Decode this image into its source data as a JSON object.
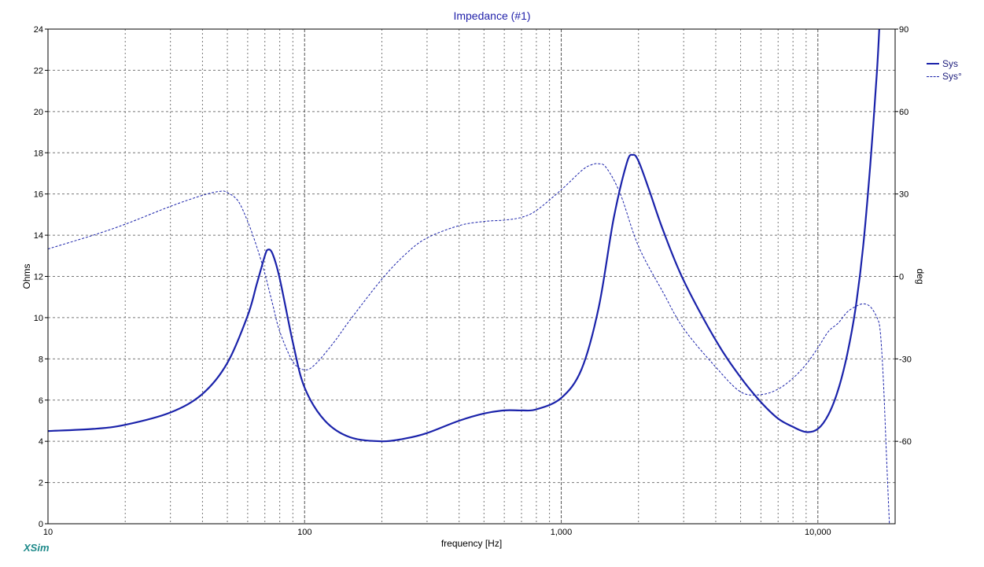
{
  "colors": {
    "curve": "#1a22aa",
    "grid": "#777777",
    "title": "#2222aa",
    "brand": "#1e8a8a"
  },
  "brand": "XSim",
  "chart_data": {
    "type": "line",
    "title": "Impedance (#1)",
    "xlabel": "frequency [Hz]",
    "ylabel": "Ohms",
    "y2label": "deg",
    "xscale": "log",
    "xlim": [
      10,
      20000
    ],
    "ylim": [
      0,
      24
    ],
    "y2lim": [
      -90,
      90
    ],
    "xticks": [
      10,
      100,
      1000,
      10000
    ],
    "xticklabels": [
      "10",
      "100",
      "1,000",
      "10,000"
    ],
    "yticks": [
      0,
      2,
      4,
      6,
      8,
      10,
      12,
      14,
      16,
      18,
      20,
      22,
      24
    ],
    "yticklabels": [
      "0",
      "2",
      "4",
      "6",
      "8",
      "10",
      "12",
      "14",
      "16",
      "18",
      "20",
      "22",
      "24"
    ],
    "y2ticks": [
      -60,
      -30,
      0,
      30,
      60,
      90
    ],
    "y2ticklabels": [
      "-60",
      "-30",
      "0",
      "30",
      "60",
      "90"
    ],
    "grid": true,
    "legend_position": "top-right",
    "series": [
      {
        "name": "Sys",
        "axis": "left",
        "style": "solid",
        "x": [
          10,
          15,
          20,
          30,
          40,
          50,
          60,
          65,
          70,
          72,
          75,
          80,
          90,
          100,
          120,
          150,
          200,
          250,
          300,
          400,
          500,
          600,
          700,
          800,
          1000,
          1200,
          1400,
          1600,
          1800,
          1900,
          2000,
          2200,
          2500,
          3000,
          4000,
          5000,
          6000,
          7000,
          8000,
          9000,
          10000,
          11000,
          12000,
          13000,
          14000,
          15000,
          16000,
          17000,
          17500
        ],
        "y": [
          4.5,
          4.6,
          4.8,
          5.4,
          6.3,
          7.8,
          10.1,
          11.6,
          13.0,
          13.3,
          13.1,
          11.9,
          8.8,
          6.6,
          5.0,
          4.2,
          4.0,
          4.15,
          4.4,
          5.0,
          5.35,
          5.5,
          5.5,
          5.55,
          6.1,
          7.5,
          10.5,
          14.8,
          17.5,
          17.9,
          17.6,
          16.2,
          14.2,
          11.8,
          8.9,
          7.1,
          5.9,
          5.1,
          4.7,
          4.45,
          4.6,
          5.3,
          6.5,
          8.2,
          10.4,
          13.4,
          17.4,
          22.0,
          25.0
        ]
      },
      {
        "name": "Sys°",
        "axis": "right",
        "style": "dashed",
        "x": [
          10,
          15,
          20,
          30,
          40,
          47,
          50,
          55,
          60,
          65,
          70,
          75,
          80,
          90,
          100,
          110,
          130,
          150,
          200,
          250,
          300,
          400,
          500,
          600,
          700,
          800,
          1000,
          1200,
          1300,
          1400,
          1500,
          1700,
          2000,
          2500,
          3000,
          4000,
          5000,
          6000,
          7000,
          8000,
          9000,
          10000,
          11000,
          12000,
          13000,
          14000,
          15000,
          16000,
          17000,
          17500,
          18000,
          18500,
          19000
        ],
        "y": [
          10,
          15,
          19,
          25.5,
          29.5,
          31,
          30.5,
          27.5,
          20,
          11,
          1,
          -10,
          -20,
          -31,
          -34,
          -32,
          -24,
          -16,
          -1,
          8.5,
          14,
          18.5,
          20,
          20.5,
          21.5,
          24,
          31.5,
          38.5,
          40.5,
          41,
          39.5,
          30,
          11,
          -6,
          -19,
          -33,
          -42,
          -43,
          -41,
          -37,
          -32,
          -26,
          -20,
          -17,
          -13,
          -11,
          -10,
          -11,
          -15,
          -20,
          -38,
          -65,
          -90
        ]
      }
    ]
  }
}
